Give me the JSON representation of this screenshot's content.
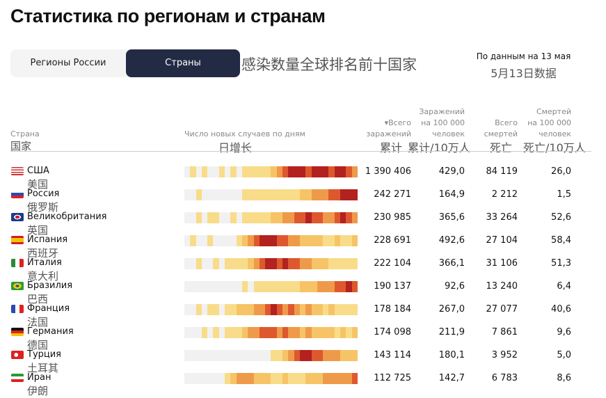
{
  "title": "Статистика по регионам и странам",
  "tabs": [
    {
      "label": "Регионы России",
      "active": false
    },
    {
      "label": "Страны",
      "active": true
    }
  ],
  "caption_zh": "感染数量全球排名前十国家",
  "date": "По данным на 13 мая",
  "date_zh": "5月13日数据",
  "headers": {
    "country": "Страна",
    "country_zh": "国家",
    "daily": "Число новых случаев по дням",
    "daily_zh": "日增长",
    "total1": "▾Всего",
    "total2": "заражений",
    "total_zh": "累计",
    "per1": "Заражений",
    "per2": "на 100 000",
    "per3": "человек",
    "per_zh": "累计/10万人",
    "deaths1": "Всего",
    "deaths2": "смертей",
    "deaths_zh": "死亡",
    "dper1": "Смертей",
    "dper2": "на 100 000",
    "dper3": "человек",
    "dper_zh": "死亡/10万人"
  },
  "heat_colors": [
    "#f1f1f1",
    "#f9dc8a",
    "#f6c466",
    "#ef9a4a",
    "#de582e",
    "#b3221f"
  ],
  "rows": [
    {
      "name": "США",
      "name_zh": "美国",
      "flag": "us",
      "total": "1 390 406",
      "per100k": "429,0",
      "deaths": "84 119",
      "deaths100k": "26,0",
      "heat": [
        0,
        1,
        0,
        1,
        0,
        0,
        1,
        0,
        1,
        0,
        1,
        1,
        1,
        1,
        1,
        2,
        3,
        4,
        5,
        5,
        5,
        4,
        5,
        5,
        5,
        4,
        5,
        5,
        4,
        3
      ]
    },
    {
      "name": "Россия",
      "name_zh": "俄罗斯",
      "flag": "ru",
      "total": "242 271",
      "per100k": "164,9",
      "deaths": "2 212",
      "deaths100k": "1,5",
      "heat": [
        0,
        0,
        1,
        0,
        0,
        0,
        0,
        0,
        0,
        0,
        1,
        1,
        1,
        1,
        1,
        1,
        1,
        1,
        1,
        1,
        2,
        2,
        3,
        3,
        3,
        4,
        4,
        5,
        5,
        5
      ]
    },
    {
      "name": "Великобритания",
      "name_zh": "英国",
      "flag": "gb",
      "total": "230 985",
      "per100k": "365,6",
      "deaths": "33 264",
      "deaths100k": "52,6",
      "heat": [
        0,
        0,
        1,
        0,
        1,
        1,
        0,
        0,
        1,
        0,
        1,
        1,
        1,
        1,
        1,
        2,
        2,
        3,
        3,
        4,
        4,
        5,
        4,
        4,
        3,
        3,
        4,
        5,
        4,
        3
      ]
    },
    {
      "name": "Испания",
      "name_zh": "西班牙",
      "flag": "es",
      "total": "228 691",
      "per100k": "492,6",
      "deaths": "27 104",
      "deaths100k": "58,4",
      "heat": [
        0,
        1,
        0,
        0,
        1,
        0,
        0,
        0,
        0,
        1,
        2,
        3,
        4,
        5,
        5,
        5,
        4,
        4,
        3,
        3,
        2,
        2,
        2,
        2,
        1,
        1,
        2,
        1,
        1,
        2
      ]
    },
    {
      "name": "Италия",
      "name_zh": "意大利",
      "flag": "it",
      "total": "222 104",
      "per100k": "366,1",
      "deaths": "31 106",
      "deaths100k": "51,3",
      "heat": [
        0,
        0,
        1,
        0,
        0,
        1,
        0,
        1,
        1,
        1,
        1,
        2,
        3,
        4,
        5,
        5,
        4,
        5,
        4,
        4,
        3,
        3,
        2,
        2,
        2,
        1,
        1,
        1,
        1,
        1
      ]
    },
    {
      "name": "Бразилия",
      "name_zh": "巴西",
      "flag": "br",
      "total": "190 137",
      "per100k": "92,6",
      "deaths": "13 240",
      "deaths100k": "6,4",
      "heat": [
        0,
        0,
        0,
        0,
        0,
        0,
        0,
        0,
        0,
        0,
        1,
        0,
        1,
        1,
        1,
        1,
        1,
        1,
        1,
        1,
        2,
        2,
        2,
        3,
        3,
        3,
        4,
        4,
        5,
        4
      ]
    },
    {
      "name": "Франция",
      "name_zh": "法国",
      "flag": "fr",
      "total": "178 184",
      "per100k": "267,0",
      "deaths": "27 077",
      "deaths100k": "40,6",
      "heat": [
        0,
        0,
        1,
        0,
        1,
        1,
        0,
        1,
        1,
        2,
        2,
        2,
        3,
        3,
        4,
        5,
        4,
        3,
        4,
        3,
        2,
        3,
        2,
        2,
        1,
        2,
        1,
        1,
        1,
        1
      ]
    },
    {
      "name": "Германия",
      "name_zh": "德国",
      "flag": "de",
      "total": "174 098",
      "per100k": "211,9",
      "deaths": "7 861",
      "deaths100k": "9,6",
      "heat": [
        0,
        0,
        0,
        1,
        0,
        1,
        0,
        1,
        1,
        1,
        2,
        3,
        3,
        4,
        4,
        4,
        3,
        4,
        3,
        3,
        2,
        3,
        2,
        2,
        2,
        2,
        1,
        2,
        1,
        2
      ]
    },
    {
      "name": "Турция",
      "name_zh": "土耳其",
      "flag": "tr",
      "total": "143 114",
      "per100k": "180,1",
      "deaths": "3 952",
      "deaths100k": "5,0",
      "heat": [
        0,
        0,
        0,
        0,
        0,
        0,
        0,
        0,
        0,
        0,
        0,
        0,
        0,
        0,
        0,
        1,
        1,
        2,
        3,
        4,
        5,
        5,
        4,
        4,
        3,
        3,
        3,
        2,
        2,
        2
      ]
    },
    {
      "name": "Иран",
      "name_zh": "伊朗",
      "flag": "ir",
      "total": "112 725",
      "per100k": "142,7",
      "deaths": "6 783",
      "deaths100k": "8,6",
      "heat": [
        0,
        0,
        0,
        0,
        0,
        0,
        0,
        1,
        2,
        3,
        3,
        3,
        2,
        2,
        2,
        1,
        1,
        2,
        1,
        1,
        1,
        2,
        2,
        2,
        3,
        3,
        3,
        3,
        3,
        4
      ]
    }
  ]
}
